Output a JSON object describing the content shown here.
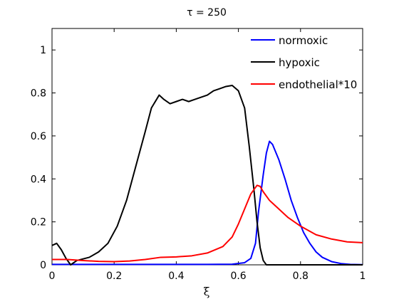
{
  "chart_data": {
    "type": "line",
    "title": "τ = 250",
    "xlabel": "ξ",
    "ylabel": "",
    "xlim": [
      0,
      1
    ],
    "ylim": [
      0,
      1.1
    ],
    "xticks": [
      0,
      0.2,
      0.4,
      0.6,
      0.8,
      1
    ],
    "xtick_labels": [
      "0",
      "0.2",
      "0.4",
      "0.6",
      "0.8",
      "1"
    ],
    "yticks": [
      0,
      0.2,
      0.4,
      0.6,
      0.8,
      1
    ],
    "ytick_labels": [
      "0",
      "0.2",
      "0.4",
      "0.6",
      "0.8",
      "1"
    ],
    "grid": false,
    "legend_position": "top-right",
    "series": [
      {
        "name": "normoxic",
        "color": "#0000ff",
        "points": [
          [
            0,
            0.002
          ],
          [
            0.5,
            0.002
          ],
          [
            0.58,
            0.003
          ],
          [
            0.62,
            0.01
          ],
          [
            0.64,
            0.03
          ],
          [
            0.655,
            0.1
          ],
          [
            0.665,
            0.25
          ],
          [
            0.68,
            0.42
          ],
          [
            0.69,
            0.52
          ],
          [
            0.7,
            0.575
          ],
          [
            0.71,
            0.56
          ],
          [
            0.73,
            0.49
          ],
          [
            0.75,
            0.4
          ],
          [
            0.77,
            0.3
          ],
          [
            0.79,
            0.22
          ],
          [
            0.81,
            0.15
          ],
          [
            0.83,
            0.1
          ],
          [
            0.85,
            0.06
          ],
          [
            0.87,
            0.035
          ],
          [
            0.9,
            0.015
          ],
          [
            0.93,
            0.006
          ],
          [
            0.96,
            0.002
          ],
          [
            1,
            0.001
          ]
        ]
      },
      {
        "name": "hypoxic",
        "color": "#000000",
        "points": [
          [
            0,
            0.09
          ],
          [
            0.015,
            0.1
          ],
          [
            0.03,
            0.07
          ],
          [
            0.045,
            0.03
          ],
          [
            0.06,
            0.0
          ],
          [
            0.08,
            0.02
          ],
          [
            0.12,
            0.035
          ],
          [
            0.15,
            0.06
          ],
          [
            0.18,
            0.1
          ],
          [
            0.21,
            0.18
          ],
          [
            0.24,
            0.3
          ],
          [
            0.27,
            0.46
          ],
          [
            0.3,
            0.62
          ],
          [
            0.32,
            0.73
          ],
          [
            0.345,
            0.79
          ],
          [
            0.36,
            0.77
          ],
          [
            0.38,
            0.75
          ],
          [
            0.4,
            0.76
          ],
          [
            0.42,
            0.77
          ],
          [
            0.44,
            0.76
          ],
          [
            0.46,
            0.77
          ],
          [
            0.48,
            0.78
          ],
          [
            0.5,
            0.79
          ],
          [
            0.52,
            0.81
          ],
          [
            0.54,
            0.82
          ],
          [
            0.56,
            0.83
          ],
          [
            0.58,
            0.835
          ],
          [
            0.6,
            0.81
          ],
          [
            0.62,
            0.73
          ],
          [
            0.635,
            0.55
          ],
          [
            0.65,
            0.35
          ],
          [
            0.66,
            0.2
          ],
          [
            0.67,
            0.08
          ],
          [
            0.68,
            0.02
          ],
          [
            0.69,
            0.0
          ],
          [
            1,
            0.0
          ]
        ]
      },
      {
        "name": "endothelial*10",
        "color": "#ff0000",
        "points": [
          [
            0,
            0.025
          ],
          [
            0.05,
            0.025
          ],
          [
            0.1,
            0.02
          ],
          [
            0.15,
            0.016
          ],
          [
            0.2,
            0.015
          ],
          [
            0.25,
            0.018
          ],
          [
            0.3,
            0.025
          ],
          [
            0.35,
            0.035
          ],
          [
            0.4,
            0.037
          ],
          [
            0.45,
            0.042
          ],
          [
            0.5,
            0.055
          ],
          [
            0.55,
            0.085
          ],
          [
            0.58,
            0.13
          ],
          [
            0.6,
            0.19
          ],
          [
            0.62,
            0.26
          ],
          [
            0.64,
            0.33
          ],
          [
            0.66,
            0.37
          ],
          [
            0.67,
            0.365
          ],
          [
            0.68,
            0.34
          ],
          [
            0.7,
            0.3
          ],
          [
            0.73,
            0.26
          ],
          [
            0.76,
            0.22
          ],
          [
            0.8,
            0.18
          ],
          [
            0.85,
            0.14
          ],
          [
            0.9,
            0.12
          ],
          [
            0.95,
            0.107
          ],
          [
            1,
            0.103
          ]
        ]
      }
    ]
  }
}
